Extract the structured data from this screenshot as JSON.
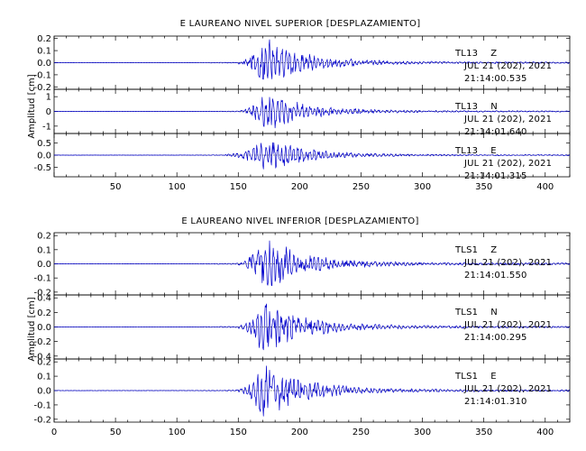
{
  "chart_data": [
    {
      "type": "line",
      "title": "E LAUREANO NIVEL SUPERIOR [DESPLAZAMIENTO]",
      "ylabel": "Amplitud [cm]",
      "xlim": [
        0,
        420
      ],
      "xticks": [
        "50",
        "100",
        "150",
        "200",
        "250",
        "300",
        "350",
        "400"
      ],
      "line_color": "#0000cc",
      "series": [
        {
          "station": "TL13",
          "component": "Z",
          "date": "JUL 21 (202), 2021",
          "time": "21:14:00.535",
          "ylim": [
            -0.22,
            0.22
          ],
          "yticks": [
            "0.2",
            "0.1",
            "0.0",
            "-0.1",
            "-0.2"
          ],
          "peak": 0.2,
          "onset": 150,
          "peak_time": 172
        },
        {
          "station": "TL13",
          "component": "N",
          "date": "JUL 21 (202), 2021",
          "time": "21:14:01.640",
          "ylim": [
            -1.5,
            1.5
          ],
          "yticks": [
            "1",
            "0",
            "-1"
          ],
          "peak": 1.3,
          "onset": 150,
          "peak_time": 173
        },
        {
          "station": "TL13",
          "component": "E",
          "date": "JUL 21 (202), 2021",
          "time": "21:14:01.315",
          "ylim": [
            -0.9,
            0.9
          ],
          "yticks": [
            "0.5",
            "0.0",
            "-0.5"
          ],
          "peak": 0.7,
          "onset": 140,
          "peak_time": 172
        }
      ]
    },
    {
      "type": "line",
      "title": "E LAUREANO NIVEL INFERIOR [DESPLAZAMIENTO]",
      "ylabel": "Amplitud [cm]",
      "xlim": [
        0,
        420
      ],
      "xticks": [
        "0",
        "50",
        "100",
        "150",
        "200",
        "250",
        "300",
        "350",
        "400"
      ],
      "line_color": "#0000cc",
      "series": [
        {
          "station": "TLS1",
          "component": "Z",
          "date": "JUL 21 (202), 2021",
          "time": "21:14:01.550",
          "ylim": [
            -0.22,
            0.22
          ],
          "yticks": [
            "0.2",
            "0.1",
            "0.0",
            "-0.1",
            "-0.2"
          ],
          "peak": 0.2,
          "onset": 150,
          "peak_time": 170
        },
        {
          "station": "TLS1",
          "component": "N",
          "date": "JUL 21 (202), 2021",
          "time": "21:14:00.295",
          "ylim": [
            -0.44,
            0.44
          ],
          "yticks": [
            "0.4",
            "0.2",
            "0.0",
            "-0.2",
            "-0.4"
          ],
          "peak": 0.38,
          "onset": 150,
          "peak_time": 170
        },
        {
          "station": "TLS1",
          "component": "E",
          "date": "JUL 21 (202), 2021",
          "time": "21:14:01.310",
          "ylim": [
            -0.22,
            0.22
          ],
          "yticks": [
            "0.2",
            "0.1",
            "0.0",
            "-0.1",
            "-0.2"
          ],
          "peak": 0.2,
          "onset": 150,
          "peak_time": 170
        }
      ]
    }
  ]
}
